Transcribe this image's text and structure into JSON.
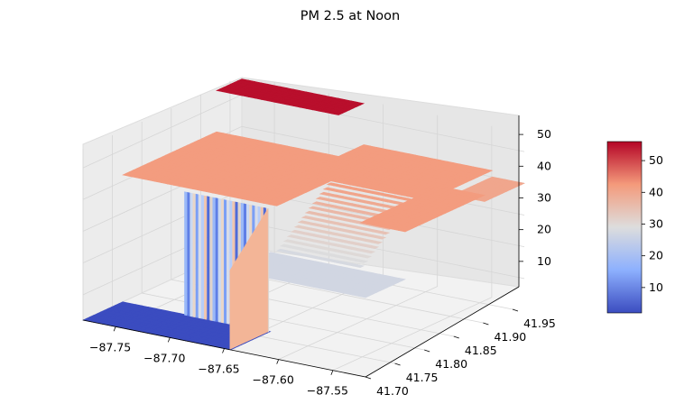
{
  "chart_data": {
    "type": "surface3d",
    "title": "PM 2.5 at Noon",
    "xlabel": "",
    "ylabel": "",
    "zlabel": "",
    "colormap": "coolwarm",
    "xlim": [
      -87.78,
      -87.52
    ],
    "ylim": [
      41.7,
      41.97
    ],
    "zlim": [
      2,
      56
    ],
    "x_ticks": [
      "-87.75",
      "-87.70",
      "-87.65",
      "-87.60",
      "-87.55"
    ],
    "y_ticks": [
      "41.70",
      "41.75",
      "41.80",
      "41.85",
      "41.90",
      "41.95"
    ],
    "z_ticks": [
      "10",
      "20",
      "30",
      "40",
      "50"
    ],
    "colorbar": {
      "min": 2,
      "max": 56,
      "ticks": [
        "10",
        "20",
        "30",
        "40",
        "50"
      ]
    },
    "grid": true,
    "regions": [
      {
        "name": "low plateau",
        "x_range": [
          -87.78,
          -87.67
        ],
        "y_range": [
          41.7,
          41.76
        ],
        "z": 2
      },
      {
        "name": "striped wall",
        "x_range": [
          -87.72,
          -87.645
        ],
        "y_range": [
          41.76,
          41.77
        ],
        "z": [
          2,
          41
        ]
      },
      {
        "name": "northwest peak",
        "x_range": [
          -87.7,
          -87.67
        ],
        "y_range": [
          41.93,
          41.97
        ],
        "z": 55
      },
      {
        "name": "main plateau",
        "x_range": [
          -87.7,
          -87.55
        ],
        "y_range": [
          41.78,
          41.97
        ],
        "z": 42
      },
      {
        "name": "southeast dip",
        "x_range": [
          -87.62,
          -87.55
        ],
        "y_range": [
          41.72,
          41.78
        ],
        "z": 27
      }
    ]
  }
}
